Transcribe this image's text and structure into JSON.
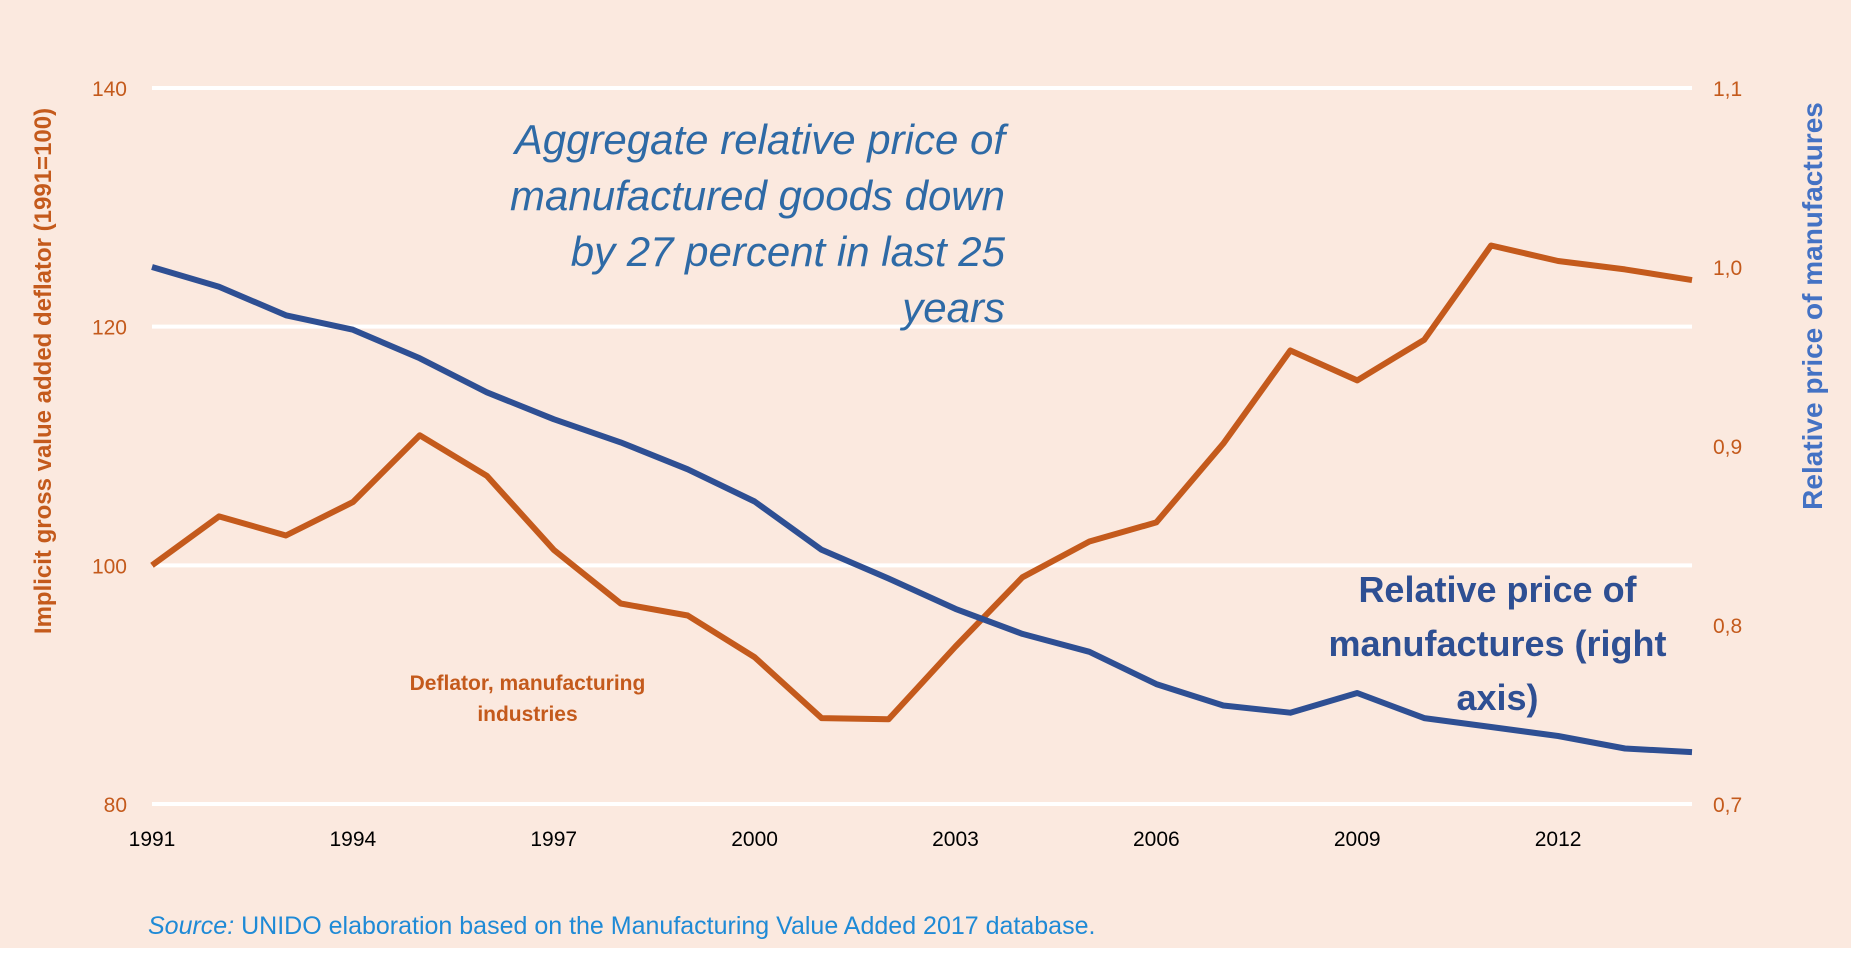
{
  "chart_data": {
    "type": "line",
    "x": [
      1991,
      1992,
      1993,
      1994,
      1995,
      1996,
      1997,
      1998,
      1999,
      2000,
      2001,
      2002,
      2003,
      2004,
      2005,
      2006,
      2007,
      2008,
      2009,
      2010,
      2011,
      2012,
      2013,
      2014
    ],
    "x_ticks": [
      "1991",
      "1994",
      "1997",
      "2000",
      "2003",
      "2006",
      "2009",
      "2012"
    ],
    "xlim": [
      1991,
      2014
    ],
    "y_left": {
      "label": "Implicit gross value added deflator (1991=100)",
      "lim": [
        80,
        140
      ],
      "ticks": [
        "80",
        "100",
        "120",
        "140"
      ],
      "color": "#c45a1c"
    },
    "y_right": {
      "label": "Relative price of manufactures",
      "lim": [
        0.7,
        1.1
      ],
      "ticks": [
        "0,7",
        "0,8",
        "0,9",
        "1,0",
        "1,1"
      ],
      "color": "#4472c4"
    },
    "grid": true,
    "series": [
      {
        "name": "Deflator, manufacturing industries",
        "axis": "left",
        "color": "#c45a1c",
        "values": [
          100.0,
          104.1,
          102.5,
          105.3,
          110.9,
          107.5,
          101.3,
          96.8,
          95.8,
          92.3,
          87.2,
          87.1,
          93.2,
          99.0,
          102.0,
          103.6,
          110.2,
          118.0,
          115.5,
          118.9,
          126.8,
          125.5,
          124.8,
          123.9
        ]
      },
      {
        "name": "Relative price of manufactures (right axis)",
        "axis": "right",
        "color": "#2e4f93",
        "values": [
          1.0,
          0.989,
          0.973,
          0.965,
          0.949,
          0.93,
          0.915,
          0.902,
          0.887,
          0.869,
          0.842,
          0.826,
          0.809,
          0.795,
          0.785,
          0.767,
          0.755,
          0.751,
          0.762,
          0.748,
          0.743,
          0.738,
          0.731,
          0.729
        ]
      }
    ],
    "annotation": "Aggregate relative price of manufactured goods down by 27 percent in last 25 years"
  },
  "source": {
    "prefix": "Source:",
    "text": " UNIDO elaboration based on the Manufacturing Value Added 2017 database."
  }
}
